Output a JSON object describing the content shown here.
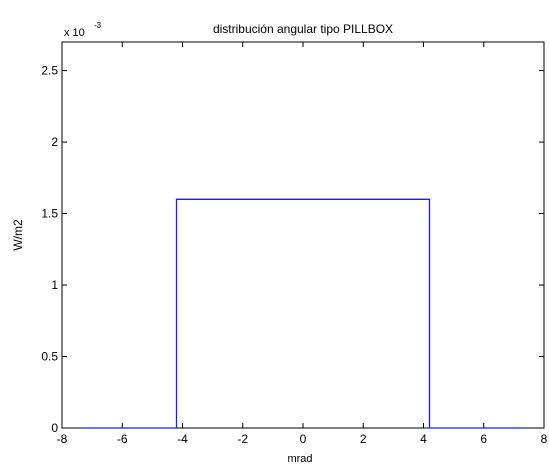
{
  "chart_data": {
    "type": "line",
    "title": "distribución angular tipo PILLBOX",
    "xlabel": "mrad",
    "ylabel": "W/m2",
    "exponent_base": "x 10",
    "exponent_power": "-3",
    "xlim": [
      -8,
      8
    ],
    "ylim": [
      0,
      2.7
    ],
    "grid": false,
    "x_ticks": [
      "-8",
      "-6",
      "-4",
      "-2",
      "0",
      "2",
      "4",
      "6",
      "8"
    ],
    "y_ticks": [
      "0",
      "0.5",
      "1",
      "1.5",
      "2",
      "2.5"
    ],
    "series": [
      {
        "color": "#1a1aff",
        "x": [
          -7.3,
          -4.2,
          -4.2,
          4.2,
          4.2,
          7.3
        ],
        "y": [
          0,
          0,
          1.6,
          1.6,
          0,
          0
        ]
      }
    ]
  }
}
